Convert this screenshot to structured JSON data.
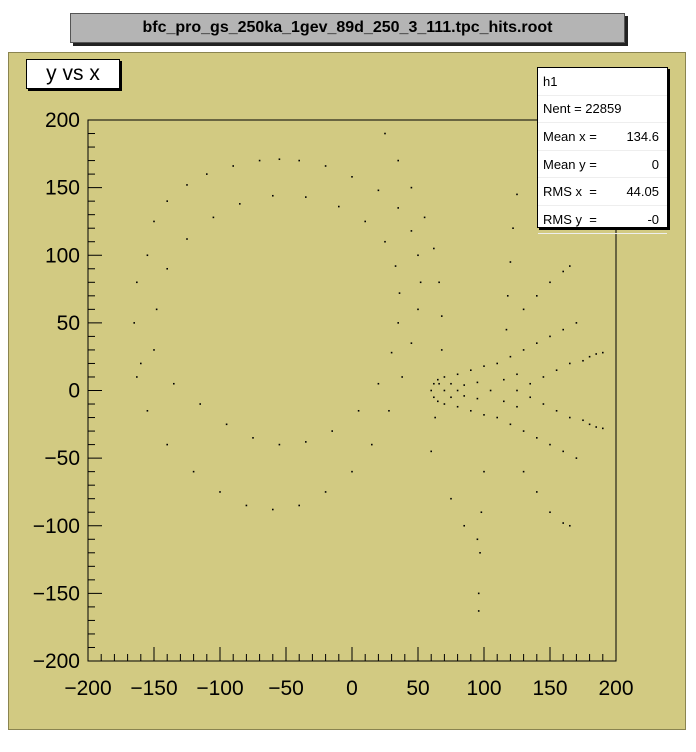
{
  "window": {
    "title": "bfc_pro_gs_250ka_1gev_89d_250_3_111.tpc_hits.root"
  },
  "plot": {
    "title": "y vs x"
  },
  "stats": {
    "name": "h1",
    "rows": [
      {
        "label": "Nent = 22859",
        "value": ""
      },
      {
        "label": "Mean x = ",
        "value": "134.6"
      },
      {
        "label": "Mean y = ",
        "value": "0"
      },
      {
        "label": "RMS x  = ",
        "value": "44.05"
      },
      {
        "label": "RMS y  = ",
        "value": "-0"
      }
    ]
  },
  "colors": {
    "pad": "#d2ca82",
    "frame": "#000000",
    "points": "#000000"
  },
  "chart_data": {
    "type": "scatter",
    "title": "y vs x",
    "xlabel": "",
    "ylabel": "",
    "xlim": [
      -200,
      200
    ],
    "ylim": [
      -200,
      200
    ],
    "xticks": [
      -200,
      -150,
      -100,
      -50,
      0,
      50,
      100,
      150,
      200
    ],
    "yticks": [
      200,
      150,
      100,
      50,
      0,
      -50,
      -100,
      -150,
      -200
    ],
    "xticklabels": [
      "−200",
      "−150",
      "−100",
      "−50",
      "0",
      "50",
      "100",
      "150",
      "200"
    ],
    "yticklabels": [
      "200",
      "150",
      "100",
      "50",
      "0",
      "−50",
      "−100",
      "−150",
      "−200"
    ],
    "grid": false,
    "series": [
      {
        "values": [
          [
            -165,
            50
          ],
          [
            -163,
            80
          ],
          [
            -160,
            20
          ],
          [
            -155,
            100
          ],
          [
            -150,
            125
          ],
          [
            -140,
            140
          ],
          [
            -125,
            152
          ],
          [
            -110,
            160
          ],
          [
            -90,
            166
          ],
          [
            -70,
            170
          ],
          [
            -55,
            171
          ],
          [
            -40,
            170
          ],
          [
            -20,
            166
          ],
          [
            0,
            158
          ],
          [
            20,
            148
          ],
          [
            35,
            135
          ],
          [
            45,
            118
          ],
          [
            50,
            100
          ],
          [
            52,
            80
          ],
          [
            50,
            60
          ],
          [
            45,
            35
          ],
          [
            38,
            10
          ],
          [
            28,
            -15
          ],
          [
            15,
            -40
          ],
          [
            0,
            -60
          ],
          [
            -20,
            -75
          ],
          [
            -40,
            -85
          ],
          [
            -60,
            -88
          ],
          [
            -80,
            -85
          ],
          [
            -100,
            -75
          ],
          [
            -120,
            -60
          ],
          [
            -140,
            -40
          ],
          [
            -155,
            -15
          ],
          [
            -163,
            10
          ],
          [
            -150,
            30
          ],
          [
            -148,
            60
          ],
          [
            -140,
            90
          ],
          [
            -125,
            112
          ],
          [
            -105,
            128
          ],
          [
            -85,
            138
          ],
          [
            -60,
            144
          ],
          [
            -35,
            143
          ],
          [
            -10,
            136
          ],
          [
            10,
            125
          ],
          [
            25,
            110
          ],
          [
            33,
            92
          ],
          [
            36,
            72
          ],
          [
            35,
            50
          ],
          [
            30,
            28
          ],
          [
            20,
            5
          ],
          [
            5,
            -15
          ],
          [
            -15,
            -30
          ],
          [
            -35,
            -38
          ],
          [
            -55,
            -40
          ],
          [
            -75,
            -35
          ],
          [
            -95,
            -25
          ],
          [
            -115,
            -10
          ],
          [
            -135,
            5
          ],
          [
            25,
            190
          ],
          [
            35,
            170
          ],
          [
            45,
            150
          ],
          [
            55,
            128
          ],
          [
            62,
            105
          ],
          [
            66,
            80
          ],
          [
            68,
            55
          ],
          [
            68,
            30
          ],
          [
            66,
            5
          ],
          [
            63,
            -20
          ],
          [
            60,
            -45
          ],
          [
            60,
            0
          ],
          [
            62,
            5
          ],
          [
            62,
            -5
          ],
          [
            65,
            8
          ],
          [
            65,
            -8
          ],
          [
            70,
            0
          ],
          [
            70,
            10
          ],
          [
            70,
            -10
          ],
          [
            75,
            5
          ],
          [
            75,
            -5
          ],
          [
            80,
            0
          ],
          [
            80,
            12
          ],
          [
            80,
            -12
          ],
          [
            85,
            4
          ],
          [
            85,
            -4
          ],
          [
            90,
            15
          ],
          [
            90,
            -15
          ],
          [
            95,
            6
          ],
          [
            95,
            -6
          ],
          [
            100,
            18
          ],
          [
            100,
            -18
          ],
          [
            105,
            0
          ],
          [
            110,
            20
          ],
          [
            110,
            -20
          ],
          [
            115,
            8
          ],
          [
            115,
            -8
          ],
          [
            120,
            25
          ],
          [
            120,
            -25
          ],
          [
            125,
            0
          ],
          [
            125,
            12
          ],
          [
            125,
            -12
          ],
          [
            130,
            30
          ],
          [
            130,
            -30
          ],
          [
            135,
            5
          ],
          [
            135,
            -5
          ],
          [
            140,
            35
          ],
          [
            140,
            -35
          ],
          [
            145,
            10
          ],
          [
            145,
            -10
          ],
          [
            150,
            40
          ],
          [
            150,
            -40
          ],
          [
            155,
            15
          ],
          [
            155,
            -15
          ],
          [
            160,
            45
          ],
          [
            160,
            -45
          ],
          [
            165,
            20
          ],
          [
            165,
            -20
          ],
          [
            170,
            50
          ],
          [
            170,
            -50
          ],
          [
            175,
            22
          ],
          [
            175,
            -22
          ],
          [
            180,
            25
          ],
          [
            180,
            -25
          ],
          [
            185,
            27
          ],
          [
            185,
            -27
          ],
          [
            190,
            28
          ],
          [
            190,
            -28
          ],
          [
            130,
            60
          ],
          [
            140,
            70
          ],
          [
            150,
            80
          ],
          [
            160,
            88
          ],
          [
            165,
            92
          ],
          [
            130,
            -60
          ],
          [
            140,
            -75
          ],
          [
            150,
            -90
          ],
          [
            160,
            -98
          ],
          [
            165,
            -100
          ],
          [
            125,
            145
          ],
          [
            122,
            120
          ],
          [
            120,
            95
          ],
          [
            118,
            70
          ],
          [
            117,
            45
          ],
          [
            100,
            -60
          ],
          [
            98,
            -90
          ],
          [
            97,
            -120
          ],
          [
            96,
            -150
          ],
          [
            96,
            -163
          ],
          [
            75,
            -80
          ],
          [
            85,
            -100
          ],
          [
            95,
            -110
          ]
        ]
      }
    ]
  }
}
